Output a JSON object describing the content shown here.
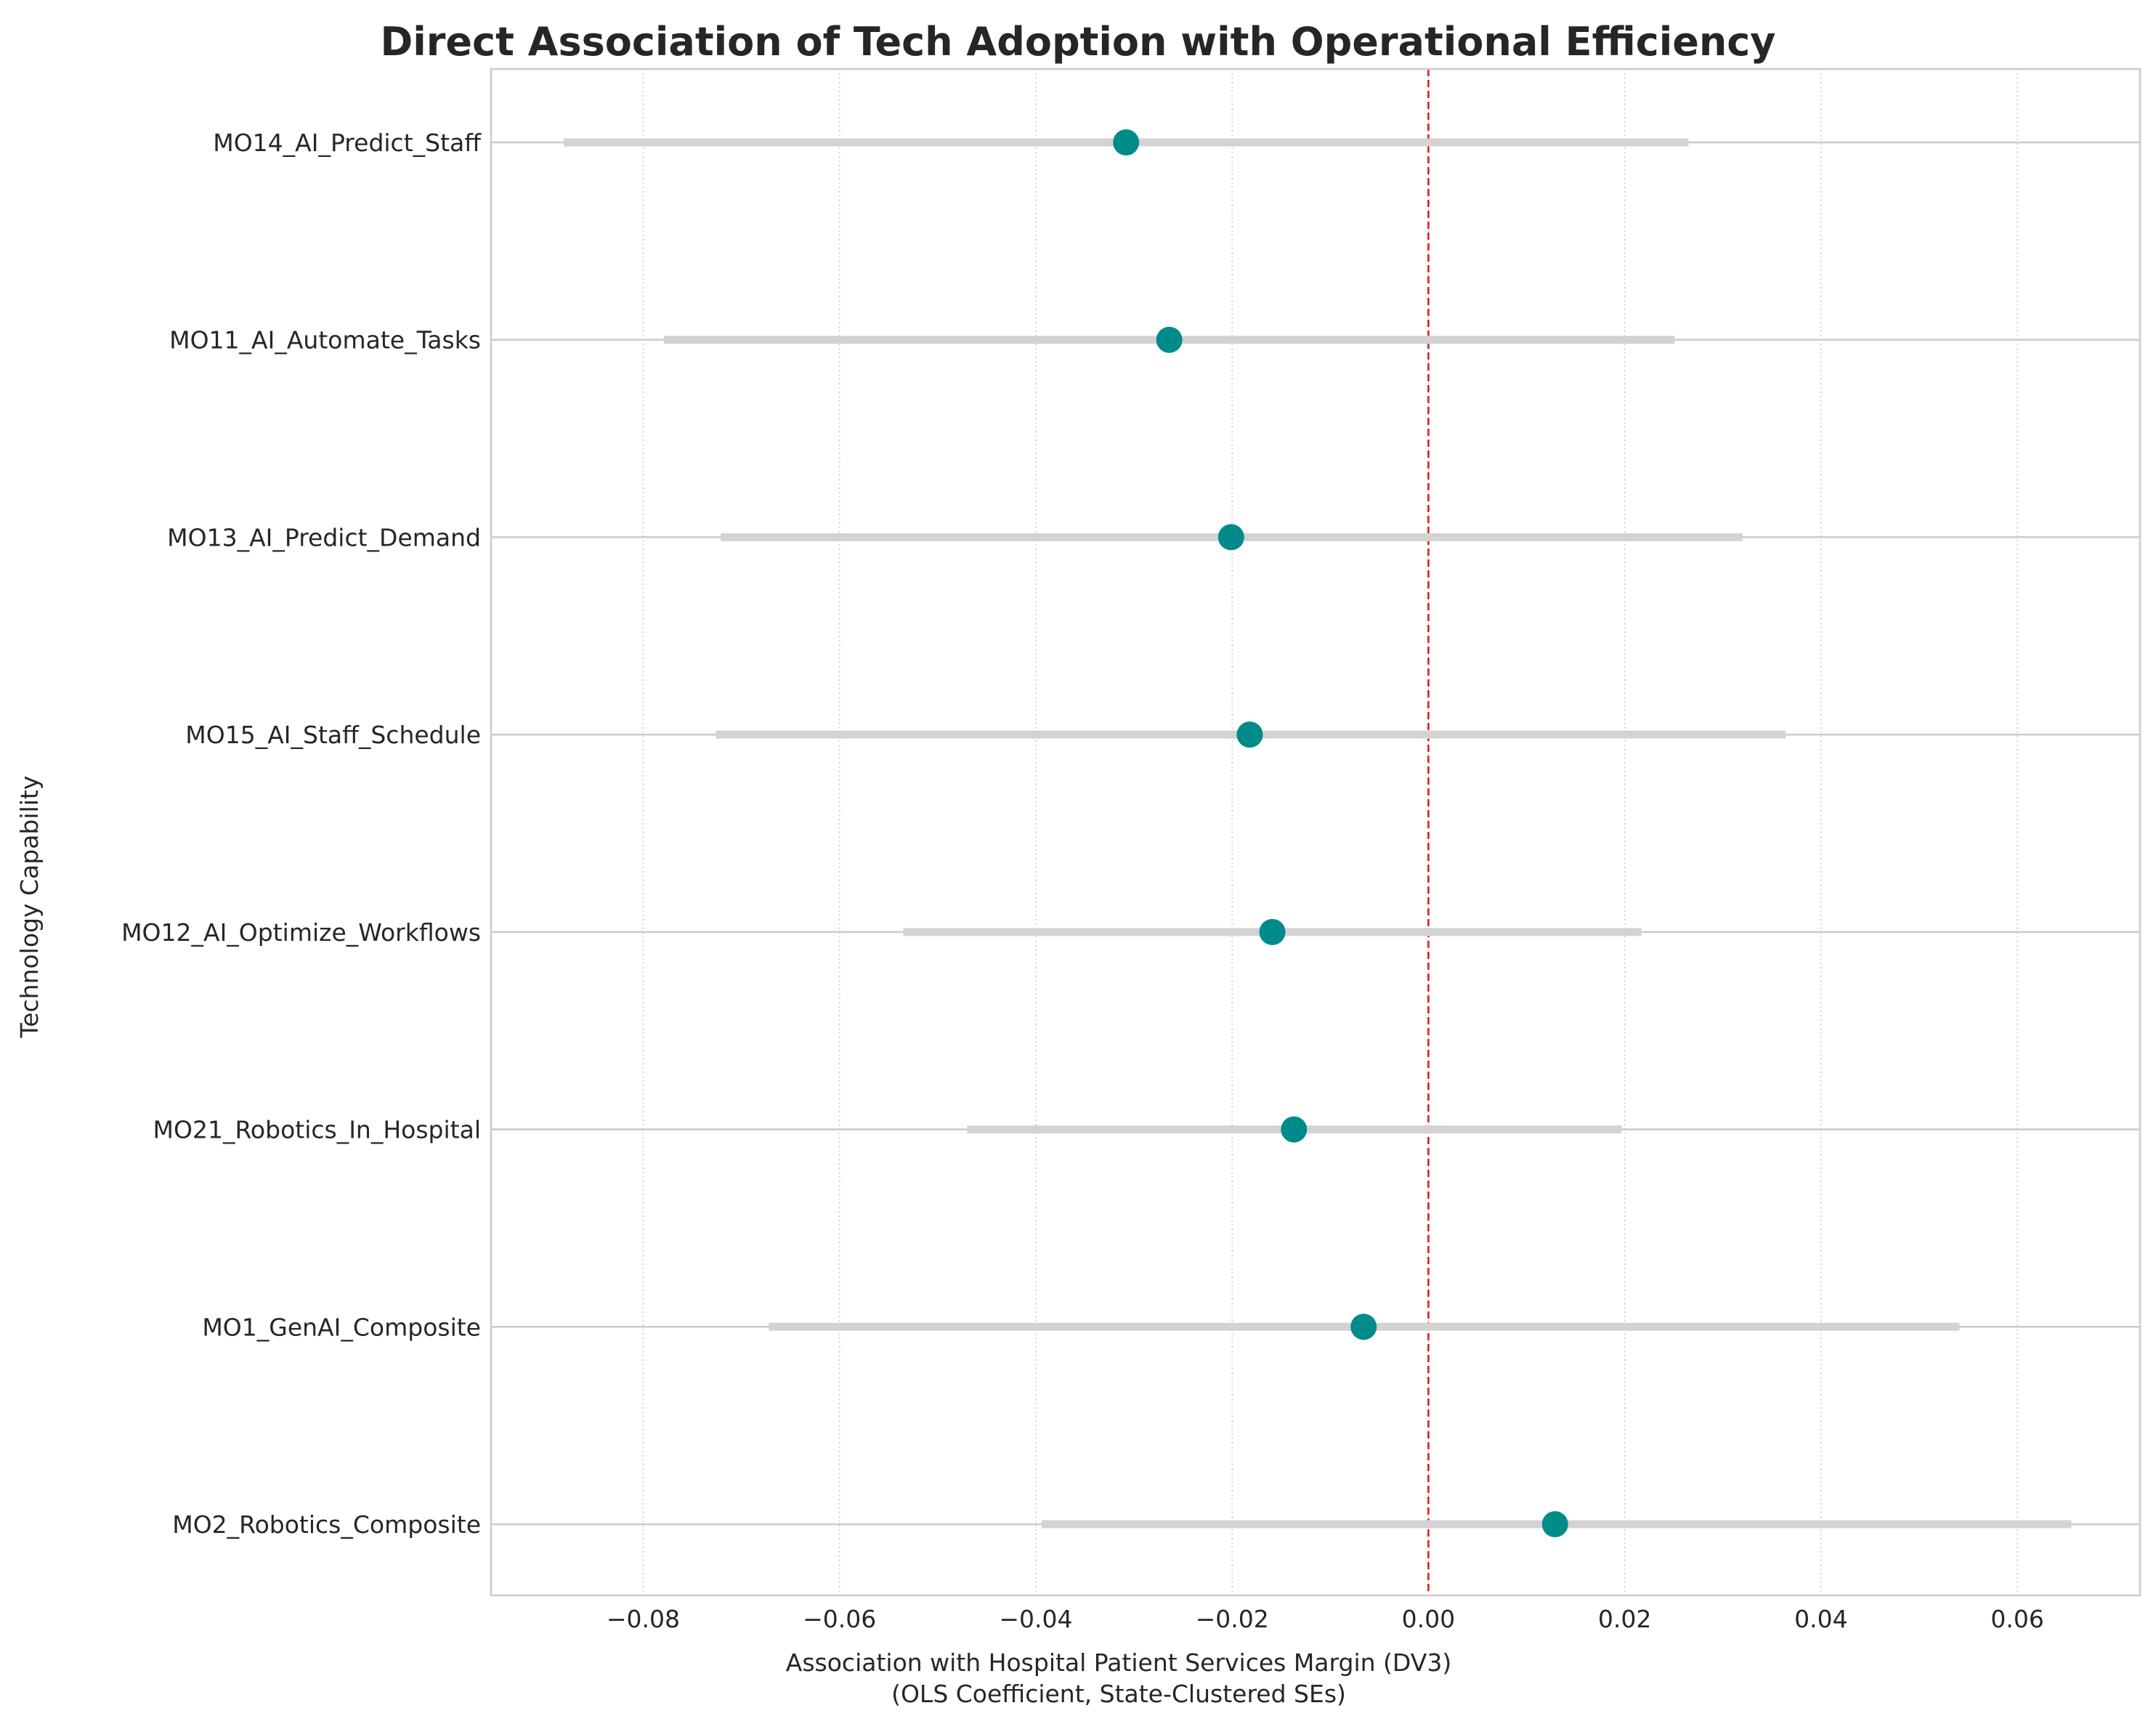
{
  "chart_data": {
    "type": "scatter",
    "title": "Direct Association of Tech Adoption with Operational Efficiency",
    "xlabel": "Association with Hospital Patient Services Margin (DV3)",
    "xlabel_line2": "(OLS Coefficient, State-Clustered SEs)",
    "ylabel": "Technology Capability",
    "xlim": [
      -0.0955,
      0.0725
    ],
    "xticks": [
      -0.08,
      -0.06,
      -0.04,
      -0.02,
      0.0,
      0.02,
      0.04,
      0.06
    ],
    "xtick_labels": [
      "−0.08",
      "−0.06",
      "−0.04",
      "−0.02",
      "0.00",
      "0.02",
      "0.04",
      "0.06"
    ],
    "reference_line": 0.0,
    "categories": [
      "MO14_AI_Predict_Staff",
      "MO11_AI_Automate_Tasks",
      "MO13_AI_Predict_Demand",
      "MO15_AI_Staff_Schedule",
      "MO12_AI_Optimize_Workflows",
      "MO21_Robotics_In_Hospital",
      "MO1_GenAI_Composite",
      "MO2_Robotics_Composite"
    ],
    "estimates": [
      -0.0308,
      -0.0264,
      -0.0201,
      -0.0182,
      -0.0159,
      -0.0137,
      -0.0066,
      0.0129
    ],
    "ci_low": [
      -0.0881,
      -0.0779,
      -0.0721,
      -0.0726,
      -0.0535,
      -0.047,
      -0.0672,
      -0.0394
    ],
    "ci_high": [
      0.0265,
      0.0251,
      0.032,
      0.0364,
      0.0217,
      0.0197,
      0.0541,
      0.0655
    ],
    "grid": true,
    "legend": "none",
    "colors": {
      "point": "#008b8b",
      "interval": "#d3d3d3",
      "reference": "#e31a1c",
      "grid": "#cccccc",
      "spine": "#cccccc",
      "text": "#262626"
    }
  }
}
